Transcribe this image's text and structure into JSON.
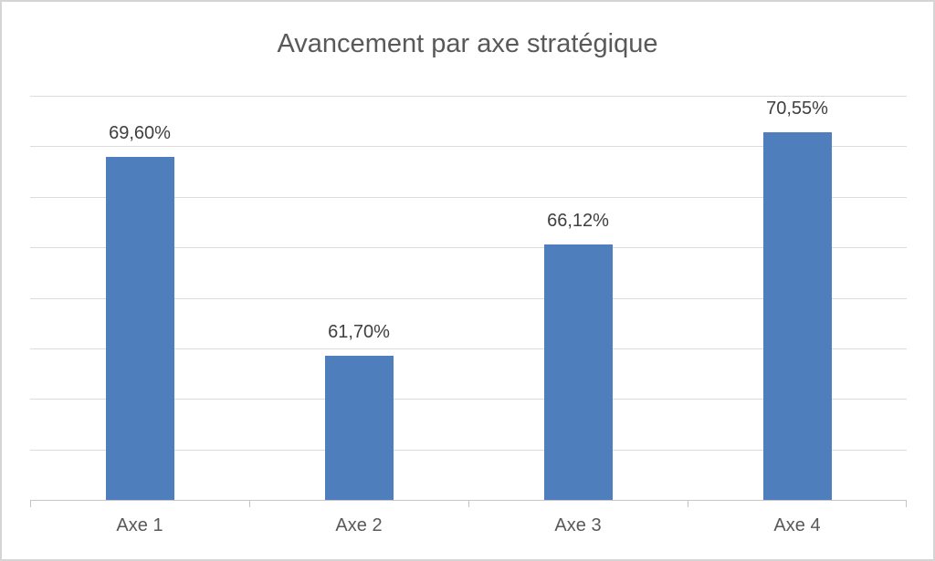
{
  "chart_data": {
    "type": "bar",
    "title": "Avancement par axe stratégique",
    "categories": [
      "Axe 1",
      "Axe 2",
      "Axe 3",
      "Axe 4"
    ],
    "values": [
      69.6,
      61.7,
      66.12,
      70.55
    ],
    "data_labels": [
      "69,60%",
      "61,70%",
      "66,12%",
      "70,55%"
    ],
    "xlabel": "",
    "ylabel": "",
    "ylim": [
      56,
      72
    ],
    "gridline_step": 2,
    "grid": true,
    "legend_position": "none",
    "y_tick_labels_visible": false,
    "style": {
      "bar_color": "#4e7ebc",
      "title_color": "#595959",
      "data_label_color": "#3f3f3f",
      "axis_label_color": "#595959",
      "gridline_color": "#dbdbdb",
      "axis_line_color": "#c6c6c6",
      "frame_border_color": "#d5d5d5",
      "background_color": "#ffffff"
    }
  }
}
